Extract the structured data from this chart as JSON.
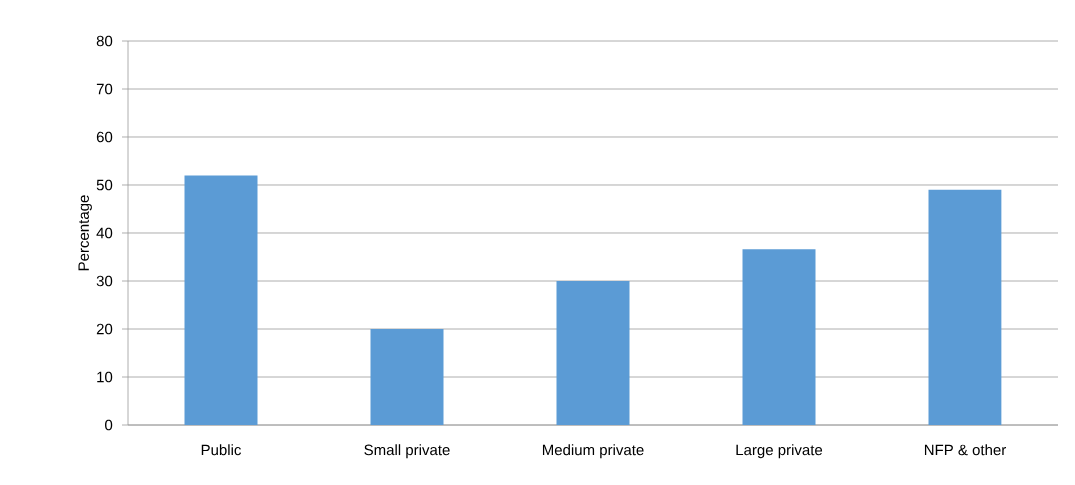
{
  "chart_data": {
    "type": "bar",
    "ylabel": "Percentage",
    "categories": [
      "Public",
      "Small private",
      "Medium private",
      "Large private",
      "NFP & other"
    ],
    "values": [
      52,
      20,
      30,
      36.6,
      49
    ],
    "color": "#5b9bd5",
    "ylim": [
      0,
      80
    ],
    "yticks": [
      0,
      10,
      20,
      30,
      40,
      50,
      60,
      70,
      80
    ],
    "grid": "y"
  }
}
